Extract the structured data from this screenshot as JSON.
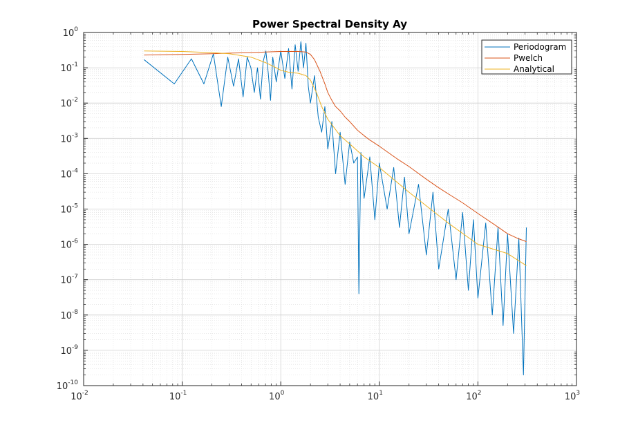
{
  "chart_data": {
    "type": "line",
    "title": "Power Spectral Density Ay",
    "xlabel": "",
    "ylabel": "",
    "xscale": "log",
    "yscale": "log",
    "xlim": [
      0.01,
      1000
    ],
    "ylim": [
      1e-10,
      1
    ],
    "x_ticks": [
      {
        "base": "10",
        "exp": "-2"
      },
      {
        "base": "10",
        "exp": "-1"
      },
      {
        "base": "10",
        "exp": "0"
      },
      {
        "base": "10",
        "exp": "1"
      },
      {
        "base": "10",
        "exp": "2"
      },
      {
        "base": "10",
        "exp": "3"
      }
    ],
    "y_ticks": [
      {
        "base": "10",
        "exp": "0"
      },
      {
        "base": "10",
        "exp": "-1"
      },
      {
        "base": "10",
        "exp": "-2"
      },
      {
        "base": "10",
        "exp": "-3"
      },
      {
        "base": "10",
        "exp": "-4"
      },
      {
        "base": "10",
        "exp": "-5"
      },
      {
        "base": "10",
        "exp": "-6"
      },
      {
        "base": "10",
        "exp": "-7"
      },
      {
        "base": "10",
        "exp": "-8"
      },
      {
        "base": "10",
        "exp": "-9"
      },
      {
        "base": "10",
        "exp": "-10"
      }
    ],
    "grid": true,
    "minor_grid": true,
    "legend_position": "top-right",
    "series": [
      {
        "name": "Periodogram",
        "color": "#0072BD",
        "x": [
          0.041,
          0.083,
          0.124,
          0.166,
          0.207,
          0.249,
          0.29,
          0.332,
          0.373,
          0.415,
          0.456,
          0.498,
          0.539,
          0.58,
          0.622,
          0.663,
          0.705,
          0.746,
          0.788,
          0.829,
          0.9,
          1.0,
          1.1,
          1.2,
          1.3,
          1.4,
          1.5,
          1.6,
          1.7,
          1.8,
          1.9,
          2.0,
          2.2,
          2.4,
          2.6,
          2.8,
          3.0,
          3.3,
          3.6,
          4.0,
          4.5,
          5.0,
          5.5,
          6.0,
          6.2,
          6.5,
          7.0,
          8.0,
          9.0,
          10,
          12,
          14,
          16,
          18,
          20,
          25,
          30,
          35,
          40,
          50,
          60,
          70,
          80,
          90,
          100,
          120,
          140,
          160,
          180,
          200,
          230,
          260,
          290,
          310
        ],
        "y": [
          0.17,
          0.035,
          0.18,
          0.035,
          0.25,
          0.008,
          0.2,
          0.03,
          0.18,
          0.015,
          0.2,
          0.1,
          0.02,
          0.1,
          0.013,
          0.15,
          0.3,
          0.07,
          0.012,
          0.2,
          0.04,
          0.3,
          0.05,
          0.35,
          0.025,
          0.45,
          0.08,
          0.55,
          0.1,
          0.5,
          0.03,
          0.01,
          0.06,
          0.004,
          0.0015,
          0.008,
          0.0005,
          0.003,
          0.0001,
          0.0015,
          5e-05,
          0.0008,
          0.0002,
          0.0003,
          4e-08,
          0.0004,
          2e-05,
          0.0003,
          5e-06,
          0.0002,
          1e-05,
          0.00015,
          3e-06,
          8e-05,
          2e-06,
          5e-05,
          5e-07,
          3e-05,
          2e-07,
          1e-05,
          1e-07,
          8e-06,
          5e-08,
          5e-06,
          3e-08,
          4e-06,
          1e-08,
          3e-06,
          5e-09,
          2e-06,
          3e-09,
          1.5e-06,
          2e-10,
          3e-06
        ]
      },
      {
        "name": "Pwelch",
        "color": "#D95319",
        "x": [
          0.041,
          0.1,
          0.2,
          0.3,
          0.5,
          0.7,
          1.0,
          1.5,
          1.8,
          2.0,
          2.2,
          2.5,
          2.8,
          3.0,
          3.3,
          3.6,
          4.0,
          4.5,
          5.0,
          6.0,
          7.0,
          8.0,
          10,
          15,
          20,
          30,
          40,
          50,
          70,
          100,
          150,
          200,
          250,
          310
        ],
        "y": [
          0.23,
          0.24,
          0.25,
          0.26,
          0.27,
          0.28,
          0.29,
          0.29,
          0.28,
          0.24,
          0.17,
          0.08,
          0.035,
          0.02,
          0.012,
          0.008,
          0.006,
          0.004,
          0.003,
          0.0017,
          0.0012,
          0.0009,
          0.0006,
          0.00027,
          0.00016,
          7e-05,
          4e-05,
          2.7e-05,
          1.5e-05,
          7.5e-06,
          3.5e-06,
          2e-06,
          1.5e-06,
          1.2e-06
        ]
      },
      {
        "name": "Analytical",
        "color": "#EDB120",
        "x": [
          0.041,
          0.1,
          0.2,
          0.3,
          0.5,
          0.7,
          0.9,
          1.0,
          1.2,
          1.5,
          1.8,
          2.0,
          2.3,
          2.6,
          3.0,
          4.0,
          5.0,
          7.0,
          10,
          20,
          50,
          100,
          200,
          310
        ],
        "y": [
          0.3,
          0.29,
          0.27,
          0.25,
          0.2,
          0.14,
          0.1,
          0.085,
          0.075,
          0.07,
          0.06,
          0.045,
          0.02,
          0.008,
          0.0035,
          0.0012,
          0.0007,
          0.0003,
          0.00015,
          3e-05,
          4e-06,
          1e-06,
          5.5e-07,
          2.5e-07
        ]
      }
    ]
  }
}
